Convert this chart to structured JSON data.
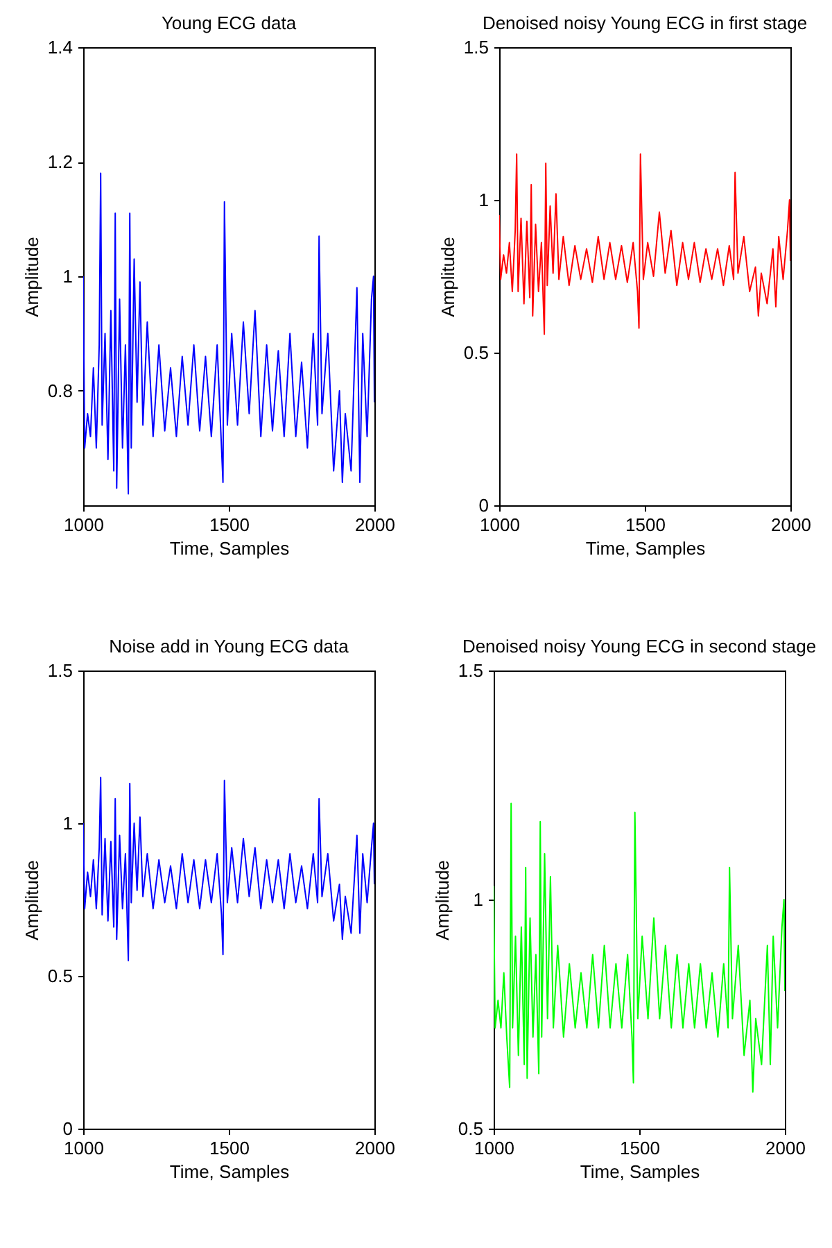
{
  "chart_data": [
    {
      "type": "line",
      "title": "Young ECG data",
      "xlabel": "Time, Samples",
      "ylabel": "Amplitude",
      "x": [
        1000,
        1005,
        1015,
        1025,
        1035,
        1045,
        1055,
        1060,
        1065,
        1075,
        1085,
        1095,
        1105,
        1110,
        1115,
        1125,
        1135,
        1145,
        1155,
        1160,
        1165,
        1175,
        1185,
        1195,
        1205,
        1220,
        1240,
        1260,
        1280,
        1300,
        1320,
        1340,
        1360,
        1380,
        1400,
        1420,
        1440,
        1460,
        1475,
        1480,
        1485,
        1495,
        1510,
        1530,
        1550,
        1570,
        1590,
        1610,
        1630,
        1650,
        1670,
        1690,
        1710,
        1730,
        1750,
        1770,
        1790,
        1805,
        1810,
        1820,
        1840,
        1860,
        1880,
        1890,
        1900,
        1920,
        1940,
        1950,
        1960,
        1975,
        1990,
        1997,
        2000
      ],
      "series": [
        {
          "color": "#0000ff",
          "values": [
            1.0,
            0.7,
            0.76,
            0.72,
            0.84,
            0.7,
            0.88,
            1.18,
            0.74,
            0.9,
            0.68,
            0.94,
            0.66,
            1.11,
            0.63,
            0.96,
            0.7,
            0.88,
            0.62,
            1.11,
            0.7,
            1.03,
            0.78,
            0.99,
            0.74,
            0.92,
            0.72,
            0.88,
            0.73,
            0.84,
            0.72,
            0.86,
            0.74,
            0.88,
            0.73,
            0.86,
            0.72,
            0.88,
            0.7,
            0.64,
            1.13,
            0.74,
            0.9,
            0.74,
            0.92,
            0.76,
            0.94,
            0.72,
            0.88,
            0.73,
            0.87,
            0.72,
            0.9,
            0.72,
            0.85,
            0.7,
            0.9,
            0.74,
            1.07,
            0.76,
            0.9,
            0.66,
            0.8,
            0.64,
            0.76,
            0.66,
            0.98,
            0.64,
            0.9,
            0.72,
            0.96,
            1.0,
            0.78
          ]
        }
      ],
      "xlim": [
        1000,
        2000
      ],
      "xticks": [
        1000,
        1500,
        2000
      ],
      "ylim": [
        0.6,
        1.4
      ],
      "yticks": [
        0.8,
        1,
        1.2,
        1.4
      ]
    },
    {
      "type": "line",
      "title": "Denoised noisy Young ECG in first stage",
      "xlabel": "Time, Samples",
      "ylabel": "Amplitude",
      "x": [
        1000,
        1005,
        1015,
        1025,
        1035,
        1045,
        1055,
        1060,
        1065,
        1075,
        1085,
        1095,
        1105,
        1110,
        1115,
        1125,
        1135,
        1145,
        1155,
        1160,
        1165,
        1175,
        1185,
        1195,
        1205,
        1220,
        1240,
        1260,
        1280,
        1300,
        1320,
        1340,
        1360,
        1380,
        1400,
        1420,
        1440,
        1460,
        1475,
        1480,
        1485,
        1495,
        1510,
        1530,
        1550,
        1570,
        1590,
        1610,
        1630,
        1650,
        1670,
        1690,
        1710,
        1730,
        1750,
        1770,
        1790,
        1805,
        1810,
        1820,
        1840,
        1860,
        1880,
        1890,
        1900,
        1920,
        1940,
        1950,
        1960,
        1975,
        1990,
        1997,
        2000
      ],
      "series": [
        {
          "color": "#ff0000",
          "values": [
            0.95,
            0.74,
            0.82,
            0.76,
            0.86,
            0.7,
            0.9,
            1.15,
            0.7,
            0.94,
            0.66,
            0.93,
            0.68,
            1.05,
            0.62,
            0.92,
            0.7,
            0.86,
            0.56,
            1.12,
            0.72,
            0.98,
            0.76,
            1.02,
            0.74,
            0.88,
            0.72,
            0.85,
            0.74,
            0.84,
            0.73,
            0.88,
            0.74,
            0.86,
            0.74,
            0.85,
            0.73,
            0.86,
            0.7,
            0.58,
            1.15,
            0.74,
            0.86,
            0.75,
            0.96,
            0.76,
            0.9,
            0.72,
            0.86,
            0.74,
            0.86,
            0.73,
            0.84,
            0.74,
            0.84,
            0.72,
            0.85,
            0.74,
            1.09,
            0.76,
            0.88,
            0.7,
            0.78,
            0.62,
            0.76,
            0.66,
            0.84,
            0.65,
            0.88,
            0.74,
            0.9,
            1.0,
            0.8
          ]
        }
      ],
      "xlim": [
        1000,
        2000
      ],
      "xticks": [
        1000,
        1500,
        2000
      ],
      "ylim": [
        0,
        1.5
      ],
      "yticks": [
        0,
        0.5,
        1,
        1.5
      ]
    },
    {
      "type": "line",
      "title": "Noise add in Young ECG data",
      "xlabel": "Time, Samples",
      "ylabel": "Amplitude",
      "x": [
        1000,
        1005,
        1015,
        1025,
        1035,
        1045,
        1055,
        1060,
        1065,
        1075,
        1085,
        1095,
        1105,
        1110,
        1115,
        1125,
        1135,
        1145,
        1155,
        1160,
        1165,
        1175,
        1185,
        1195,
        1205,
        1220,
        1240,
        1260,
        1280,
        1300,
        1320,
        1340,
        1360,
        1380,
        1400,
        1420,
        1440,
        1460,
        1475,
        1480,
        1485,
        1495,
        1510,
        1530,
        1550,
        1570,
        1590,
        1610,
        1630,
        1650,
        1670,
        1690,
        1710,
        1730,
        1750,
        1770,
        1790,
        1805,
        1810,
        1820,
        1840,
        1860,
        1880,
        1890,
        1900,
        1920,
        1940,
        1950,
        1960,
        1975,
        1990,
        1997,
        2000
      ],
      "series": [
        {
          "color": "#0000ff",
          "values": [
            1.0,
            0.72,
            0.84,
            0.76,
            0.88,
            0.72,
            0.92,
            1.15,
            0.7,
            0.95,
            0.68,
            0.94,
            0.66,
            1.08,
            0.62,
            0.96,
            0.72,
            0.9,
            0.55,
            1.13,
            0.74,
            1.0,
            0.78,
            1.02,
            0.76,
            0.9,
            0.72,
            0.88,
            0.74,
            0.86,
            0.72,
            0.9,
            0.74,
            0.88,
            0.72,
            0.88,
            0.74,
            0.9,
            0.7,
            0.57,
            1.14,
            0.74,
            0.92,
            0.74,
            0.95,
            0.76,
            0.92,
            0.72,
            0.88,
            0.74,
            0.88,
            0.72,
            0.9,
            0.74,
            0.86,
            0.72,
            0.9,
            0.74,
            1.08,
            0.76,
            0.9,
            0.68,
            0.8,
            0.62,
            0.76,
            0.64,
            0.96,
            0.64,
            0.9,
            0.74,
            0.92,
            1.0,
            0.8
          ]
        }
      ],
      "xlim": [
        1000,
        2000
      ],
      "xticks": [
        1000,
        1500,
        2000
      ],
      "ylim": [
        0,
        1.5
      ],
      "yticks": [
        0,
        0.5,
        1,
        1.5
      ]
    },
    {
      "type": "line",
      "title": "Denoised noisy Young ECG in second stage",
      "xlabel": "Time, Samples",
      "ylabel": "Amplitude",
      "x": [
        1000,
        1005,
        1015,
        1025,
        1035,
        1045,
        1055,
        1060,
        1065,
        1075,
        1085,
        1095,
        1105,
        1110,
        1115,
        1125,
        1135,
        1145,
        1155,
        1160,
        1165,
        1175,
        1185,
        1195,
        1205,
        1220,
        1240,
        1260,
        1280,
        1300,
        1320,
        1340,
        1360,
        1380,
        1400,
        1420,
        1440,
        1460,
        1475,
        1480,
        1485,
        1495,
        1510,
        1530,
        1550,
        1570,
        1590,
        1610,
        1630,
        1650,
        1670,
        1690,
        1710,
        1730,
        1750,
        1770,
        1790,
        1805,
        1810,
        1820,
        1840,
        1860,
        1880,
        1890,
        1900,
        1920,
        1940,
        1950,
        1960,
        1975,
        1990,
        1997,
        2000
      ],
      "series": [
        {
          "color": "#00ff00",
          "values": [
            1.03,
            0.72,
            0.78,
            0.72,
            0.84,
            0.7,
            0.59,
            1.21,
            0.72,
            0.92,
            0.66,
            0.94,
            0.64,
            1.07,
            0.61,
            0.96,
            0.7,
            0.88,
            0.62,
            1.17,
            0.7,
            1.1,
            0.74,
            1.05,
            0.72,
            0.9,
            0.7,
            0.86,
            0.72,
            0.84,
            0.72,
            0.88,
            0.72,
            0.9,
            0.72,
            0.86,
            0.72,
            0.88,
            0.7,
            0.6,
            1.19,
            0.74,
            0.92,
            0.74,
            0.96,
            0.74,
            0.9,
            0.72,
            0.88,
            0.72,
            0.86,
            0.72,
            0.86,
            0.72,
            0.84,
            0.7,
            0.86,
            0.72,
            1.07,
            0.74,
            0.9,
            0.66,
            0.78,
            0.58,
            0.74,
            0.64,
            0.9,
            0.64,
            0.92,
            0.72,
            0.94,
            1.0,
            0.8
          ]
        }
      ],
      "xlim": [
        1000,
        2000
      ],
      "xticks": [
        1000,
        1500,
        2000
      ],
      "ylim": [
        0.5,
        1.5
      ],
      "yticks": [
        0.5,
        1,
        1.5
      ]
    }
  ]
}
